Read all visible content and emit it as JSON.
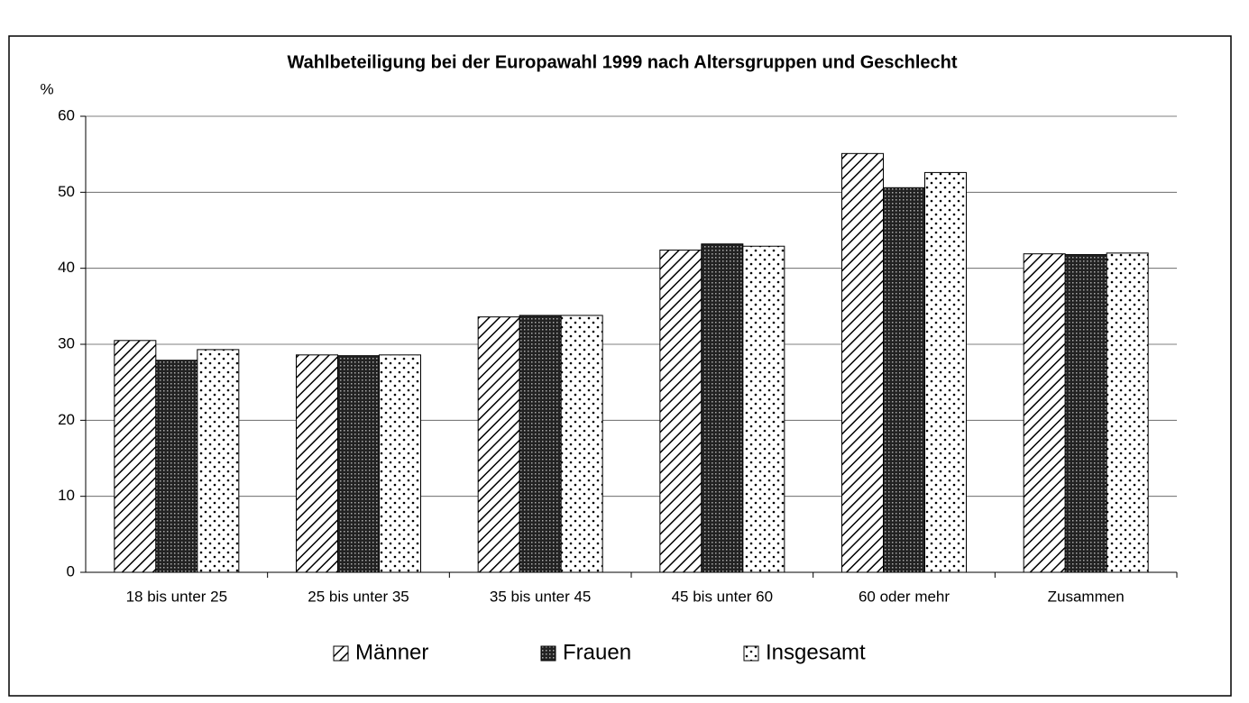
{
  "chart_data": {
    "type": "bar",
    "title": "Wahlbeteiligung bei der Europawahl 1999 nach Altersgruppen und Geschlecht",
    "y_label": "%",
    "categories": [
      "18 bis unter 25",
      "25 bis unter 35",
      "35 bis unter 45",
      "45 bis unter 60",
      "60 oder mehr",
      "Zusammen"
    ],
    "series": [
      {
        "name": "Männer",
        "color": "#000000",
        "pattern": "diagonal",
        "values": [
          30.5,
          28.6,
          33.6,
          42.4,
          55.1,
          41.9
        ]
      },
      {
        "name": "Frauen",
        "color": "#000000",
        "pattern": "dense",
        "values": [
          27.9,
          28.5,
          33.8,
          43.2,
          50.6,
          41.8
        ]
      },
      {
        "name": "Insgesamt",
        "color": "#000000",
        "pattern": "dots",
        "values": [
          29.3,
          28.6,
          33.8,
          42.9,
          52.6,
          42.0
        ]
      }
    ],
    "ylim": [
      0,
      60
    ],
    "yticks": [
      0,
      10,
      20,
      30,
      40,
      50,
      60
    ],
    "grid": true,
    "legend": "bottom"
  }
}
